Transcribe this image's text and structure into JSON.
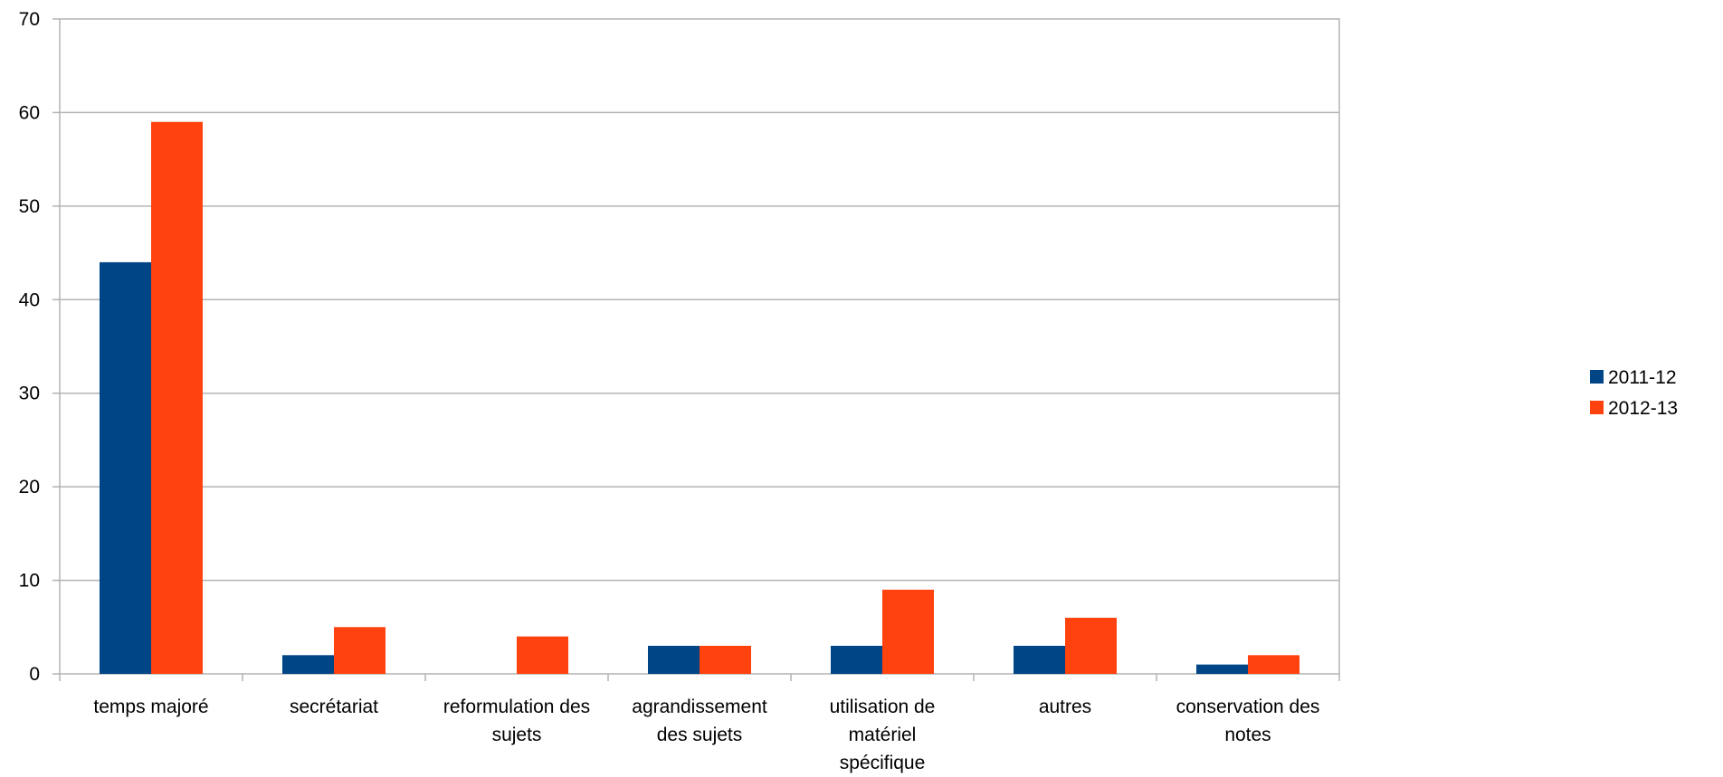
{
  "chart_data": {
    "type": "bar",
    "categories": [
      [
        "temps majoré"
      ],
      [
        "secrétariat"
      ],
      [
        "reformulation des",
        "sujets"
      ],
      [
        "agrandissement",
        "des sujets"
      ],
      [
        "utilisation de",
        "matériel",
        "spécifique"
      ],
      [
        "autres"
      ],
      [
        "conservation des",
        "notes"
      ]
    ],
    "series": [
      {
        "name": "2011-12",
        "color": "#004586",
        "values": [
          44,
          2,
          0,
          3,
          3,
          3,
          1
        ]
      },
      {
        "name": "2012-13",
        "color": "#ff420e",
        "values": [
          59,
          5,
          4,
          3,
          9,
          6,
          2
        ]
      }
    ],
    "title": "",
    "xlabel": "",
    "ylabel": "",
    "ylim": [
      0,
      70
    ],
    "yticks": [
      0,
      10,
      20,
      30,
      40,
      50,
      60,
      70
    ],
    "grid": true,
    "legend": "right"
  }
}
